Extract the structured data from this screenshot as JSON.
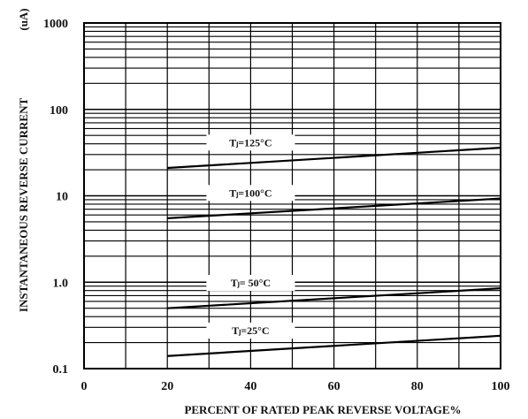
{
  "chart_data": {
    "type": "line",
    "title": "",
    "xlabel": "PERCENT OF RATED PEAK REVERSE VOLTAGE%",
    "ylabel": "INSTANTANEOUS REVERSE CURRENT",
    "ylabel_unit": "(uA)",
    "xlim": [
      0,
      100
    ],
    "ylim": [
      0.1,
      1000
    ],
    "yscale": "log",
    "grid": true,
    "x_ticks": [
      "0",
      "20",
      "40",
      "60",
      "80",
      "100"
    ],
    "y_ticks": [
      "0.1",
      "1.0",
      "10",
      "100",
      "1000"
    ],
    "series": [
      {
        "name": "Tⱼ=125°C",
        "x": [
          20,
          100
        ],
        "y": [
          21,
          36
        ]
      },
      {
        "name": "Tⱼ=100°C",
        "x": [
          20,
          100
        ],
        "y": [
          5.5,
          9.3
        ]
      },
      {
        "name": "Tⱼ= 50°C",
        "x": [
          20,
          100
        ],
        "y": [
          0.5,
          0.85
        ]
      },
      {
        "name": "Tⱼ=25°C",
        "x": [
          20,
          100
        ],
        "y": [
          0.14,
          0.24
        ]
      }
    ]
  }
}
